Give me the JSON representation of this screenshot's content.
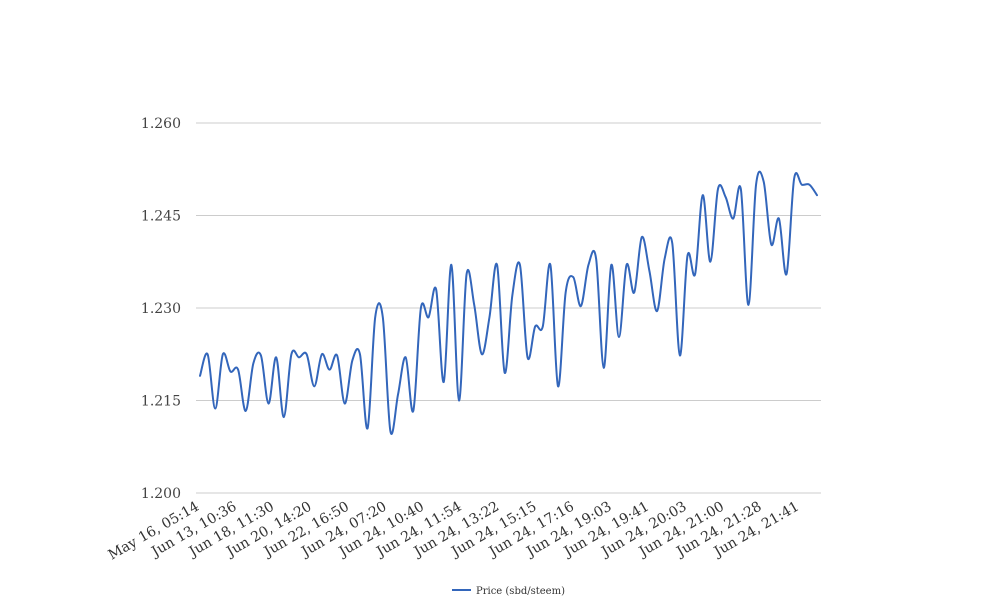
{
  "chart_data": {
    "type": "line",
    "title": "",
    "xlabel": "",
    "ylabel": "",
    "ylim": [
      1.2,
      1.26
    ],
    "yticks": [
      "1.200",
      "1.215",
      "1.230",
      "1.245",
      "1.260"
    ],
    "grid": true,
    "legend_position": "bottom-center",
    "color": "#3366bb",
    "x_tick_labels": [
      "May 16, 05:14",
      "Jun 13, 10:36",
      "Jun 18, 11:30",
      "Jun 20, 14:20",
      "Jun 22, 16:50",
      "Jun 24, 07:20",
      "Jun 24, 10:40",
      "Jun 24, 11:54",
      "Jun 24, 13:22",
      "Jun 24, 15:15",
      "Jun 24, 17:16",
      "Jun 24, 19:03",
      "Jun 24, 19:41",
      "Jun 24, 20:03",
      "Jun 24, 21:00",
      "Jun 24, 21:28",
      "Jun 24, 21:41"
    ],
    "series": [
      {
        "name": "Price (sbd/steem)",
        "values": [
          1.219,
          1.2225,
          1.2137,
          1.2225,
          1.2197,
          1.22,
          1.2133,
          1.221,
          1.2223,
          1.2145,
          1.222,
          1.2123,
          1.2225,
          1.222,
          1.2225,
          1.2173,
          1.2225,
          1.22,
          1.2223,
          1.2145,
          1.2215,
          1.2225,
          1.2105,
          1.2285,
          1.2285,
          1.21,
          1.216,
          1.222,
          1.2133,
          1.23,
          1.2285,
          1.233,
          1.218,
          1.237,
          1.215,
          1.2355,
          1.2305,
          1.2225,
          1.2285,
          1.237,
          1.2195,
          1.232,
          1.237,
          1.222,
          1.227,
          1.227,
          1.237,
          1.2173,
          1.2325,
          1.235,
          1.2303,
          1.237,
          1.238,
          1.2203,
          1.237,
          1.2253,
          1.237,
          1.2325,
          1.2415,
          1.236,
          1.2295,
          1.238,
          1.2405,
          1.2223,
          1.2385,
          1.2355,
          1.2483,
          1.2375,
          1.2493,
          1.248,
          1.2445,
          1.2493,
          1.2305,
          1.25,
          1.2505,
          1.2403,
          1.2445,
          1.2355,
          1.251,
          1.25,
          1.25,
          1.2483
        ]
      }
    ]
  }
}
